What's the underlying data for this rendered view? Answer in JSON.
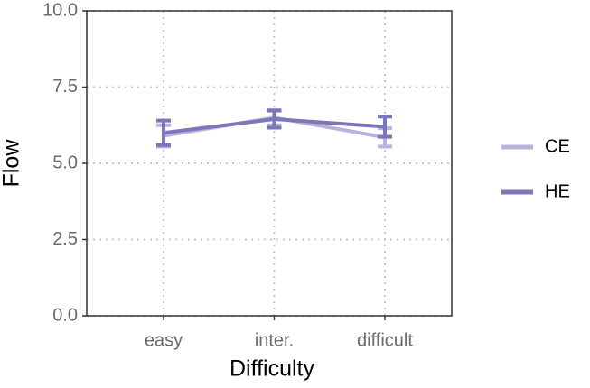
{
  "chart_data": {
    "type": "line",
    "xlabel": "Difficulty",
    "ylabel": "Flow",
    "categories": [
      "easy",
      "inter.",
      "difficult"
    ],
    "series": [
      {
        "name": "CE",
        "color": "#b6b4de",
        "values": [
          5.9,
          6.5,
          5.85
        ],
        "errors": [
          0.35,
          0.25,
          0.3
        ]
      },
      {
        "name": "HE",
        "color": "#7b77b9",
        "values": [
          6.0,
          6.45,
          6.2
        ],
        "errors": [
          0.4,
          0.28,
          0.33
        ]
      }
    ],
    "ylim": [
      0,
      10
    ],
    "yticks": [
      {
        "value": 0,
        "label": "0.0"
      },
      {
        "value": 2.5,
        "label": "2.5"
      },
      {
        "value": 5,
        "label": "5.0"
      },
      {
        "value": 7.5,
        "label": "7.5"
      },
      {
        "value": 10,
        "label": "10.0"
      }
    ],
    "grid": true,
    "legend": "right"
  }
}
